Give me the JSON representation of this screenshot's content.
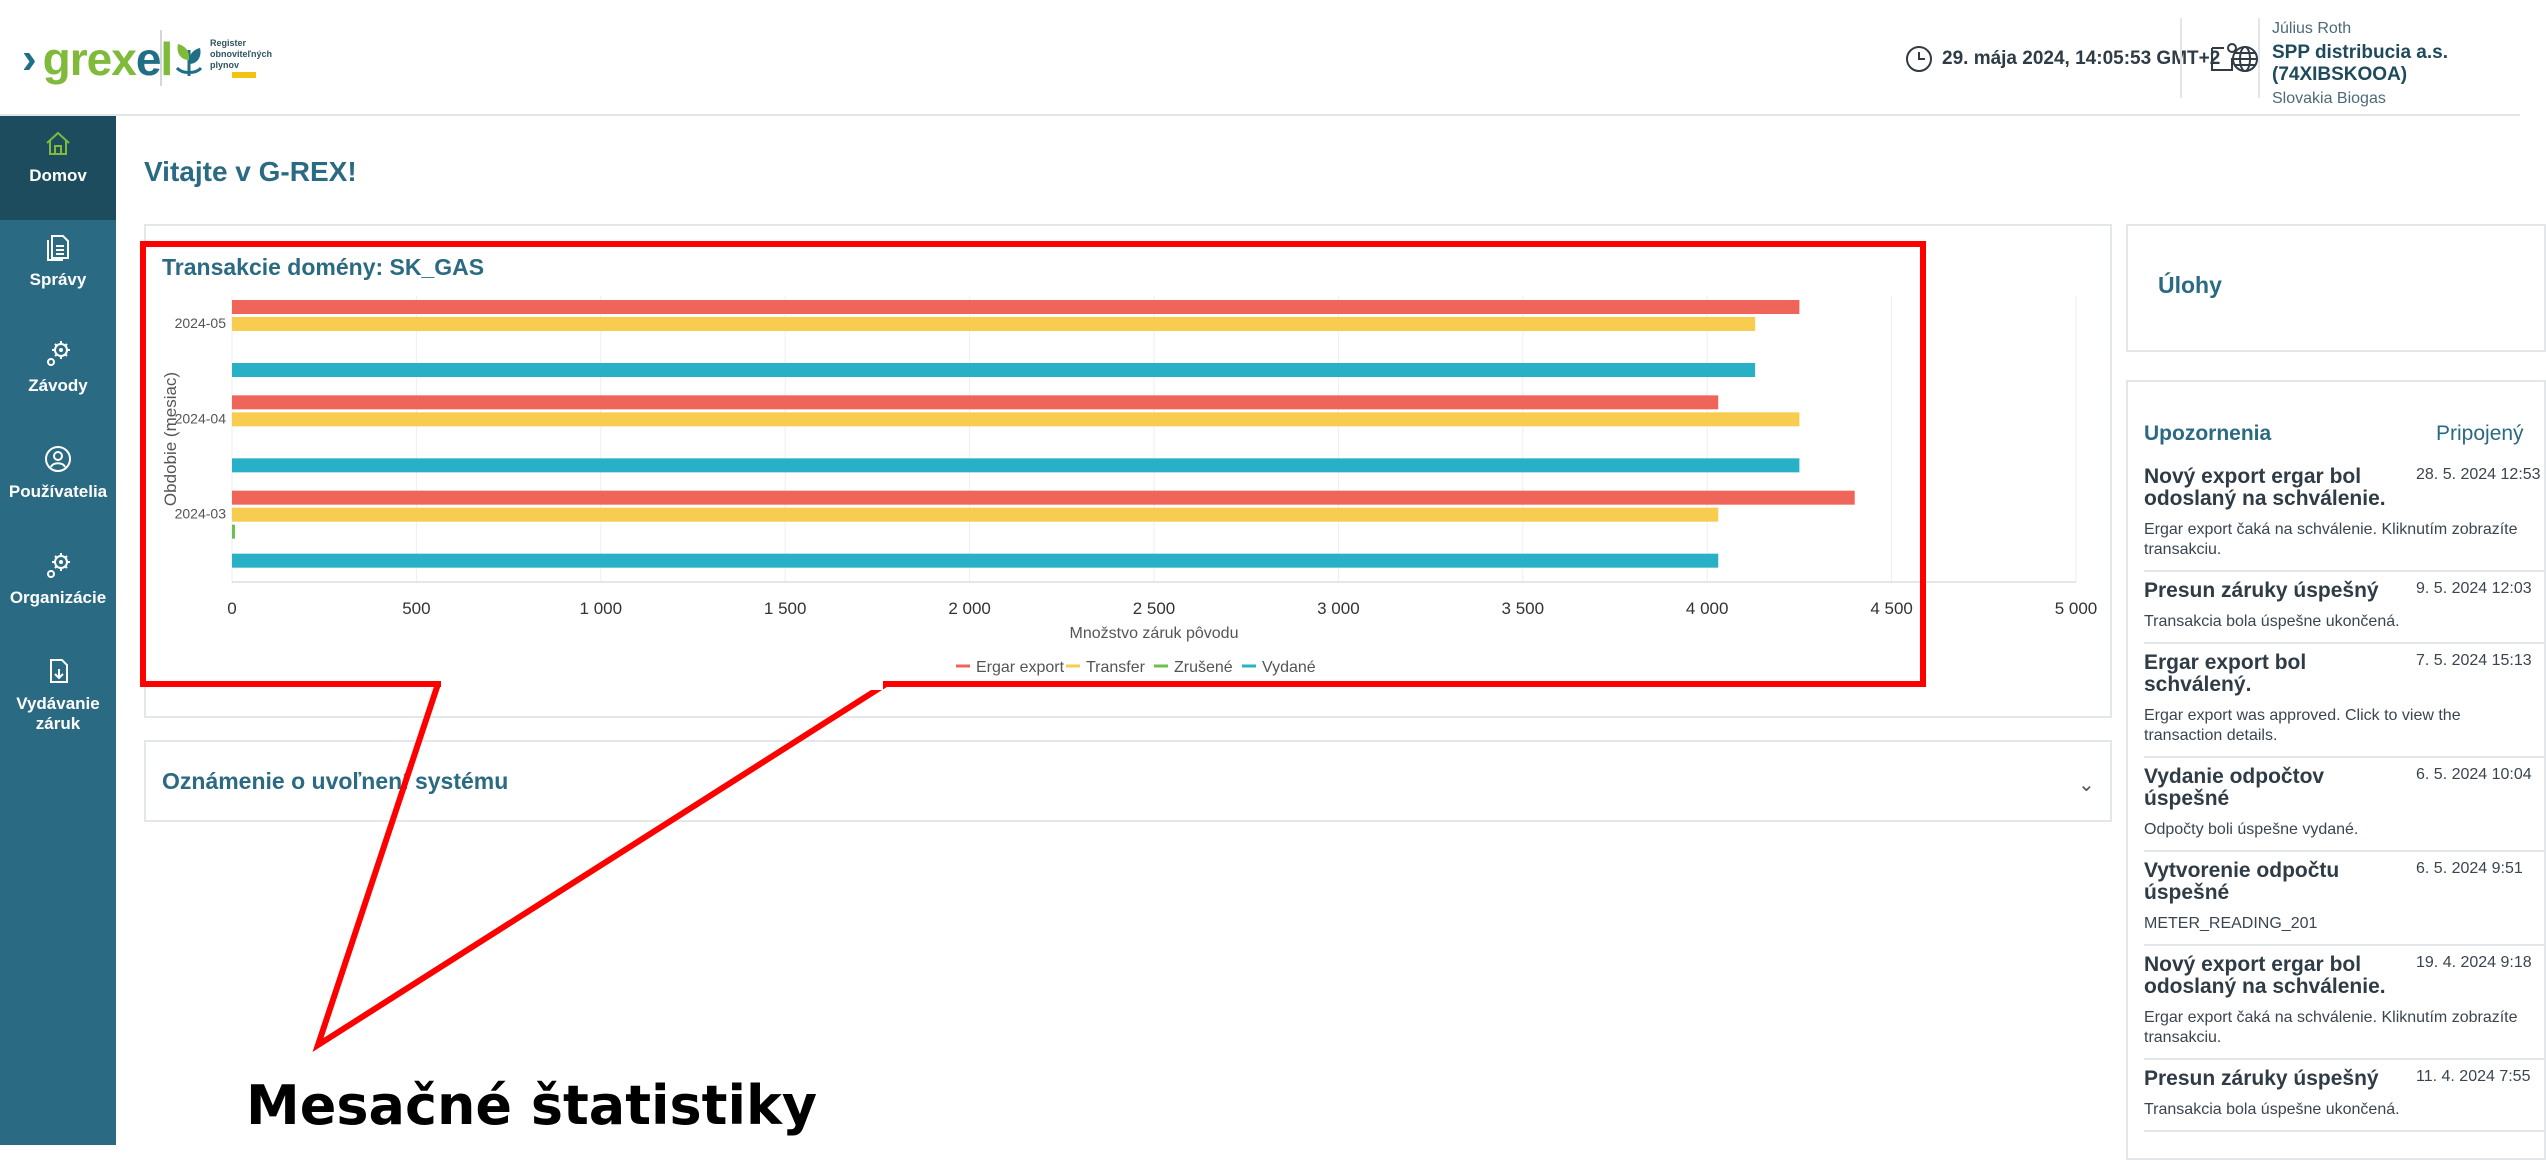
{
  "header": {
    "logo_text": "grexel",
    "register_text": "Register obnoviteľných plynov",
    "datetime": "29. mája 2024, 14:05:53 GMT+2",
    "user_name": "Július Roth",
    "user_org": "SPP distribucia a.s. (74XIBSKOOA)",
    "user_company": "Slovakia Biogas"
  },
  "sidebar": {
    "items": [
      {
        "label": "Domov",
        "icon": "home-icon",
        "active": true
      },
      {
        "label": "Správy",
        "icon": "document-icon"
      },
      {
        "label": "Závody",
        "icon": "gears-icon"
      },
      {
        "label": "Používatelia",
        "icon": "user-icon"
      },
      {
        "label": "Organizácie",
        "icon": "gears-icon"
      },
      {
        "label": "Vydávanie záruk",
        "icon": "issue-icon"
      }
    ]
  },
  "main": {
    "page_title": "Vitajte v G-REX!",
    "chart_panel_title": "Transakcie domény: SK_GAS",
    "accordion_title": "Oznámenie o uvoľnení systému"
  },
  "tasks": {
    "title": "Úlohy"
  },
  "notifications": {
    "title": "Upozornenia",
    "connected": "Pripojený",
    "items": [
      {
        "title": "Nový export ergar bol odoslaný na schválenie.",
        "date": "28. 5. 2024 12:53",
        "body": "Ergar export čaká na schválenie. Kliknutím zobrazíte transakciu."
      },
      {
        "title": "Presun záruky úspešný",
        "date": "9. 5. 2024 12:03",
        "body": "Transakcia bola úspešne ukončená."
      },
      {
        "title": "Ergar export bol schválený.",
        "date": "7. 5. 2024 15:13",
        "body": "Ergar export was approved. Click to view the transaction details."
      },
      {
        "title": "Vydanie odpočtov úspešné",
        "date": "6. 5. 2024 10:04",
        "body": "Odpočty boli úspešne vydané."
      },
      {
        "title": "Vytvorenie odpočtu úspešné",
        "date": "6. 5. 2024 9:51",
        "body": "METER_READING_201"
      },
      {
        "title": "Nový export ergar bol odoslaný na schválenie.",
        "date": "19. 4. 2024 9:18",
        "body": "Ergar export čaká na schválenie. Kliknutím zobrazíte transakciu."
      },
      {
        "title": "Presun záruky úspešný",
        "date": "11. 4. 2024 7:55",
        "body": "Transakcia bola úspešne ukončená."
      }
    ]
  },
  "annotation": {
    "caption": "Mesačné štatistiky",
    "color": "#ff0000"
  },
  "chart_data": {
    "type": "bar",
    "orientation": "horizontal",
    "categories": [
      "2024-05",
      "2024-04",
      "2024-03"
    ],
    "series": [
      {
        "name": "Ergar export",
        "color": "#f0655a",
        "values": [
          4250,
          4030,
          4400
        ]
      },
      {
        "name": "Transfer",
        "color": "#f8cc4e",
        "values": [
          4130,
          4250,
          4030
        ]
      },
      {
        "name": "Zrušené",
        "color": "#6dbf4b",
        "values": [
          0,
          0,
          8
        ]
      },
      {
        "name": "Vydané",
        "color": "#28b0c6",
        "values": [
          4130,
          4250,
          4030
        ]
      }
    ],
    "xlim": [
      0,
      5000
    ],
    "xticks": [
      0,
      500,
      1000,
      1500,
      2000,
      2500,
      3000,
      3500,
      4000,
      4500,
      5000
    ],
    "xtick_labels": [
      "0",
      "500",
      "1 000",
      "1 500",
      "2 000",
      "2 500",
      "3 000",
      "3 500",
      "4 000",
      "4 500",
      "5 000"
    ],
    "xlabel": "Množstvo záruk pôvodu",
    "ylabel": "Obdobie (mesiac)",
    "legend_position": "bottom"
  }
}
